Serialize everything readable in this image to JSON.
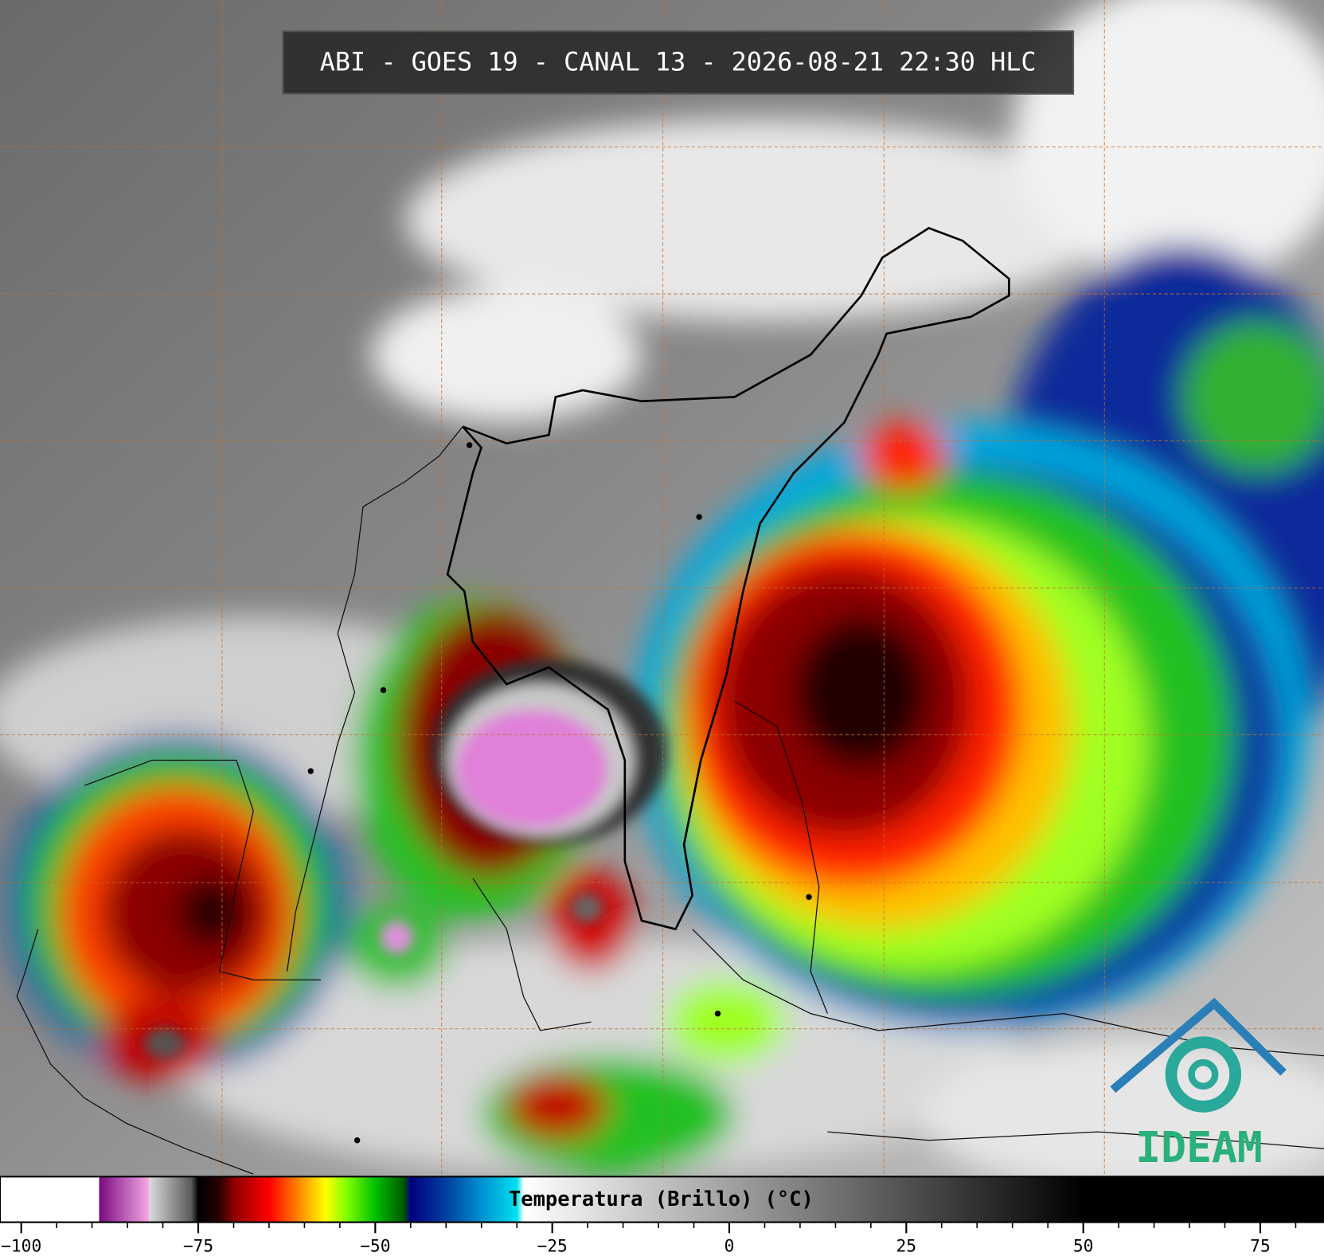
{
  "header": {
    "title": "ABI - GOES 19 - CANAL 13 - 2026-08-21 22:30 HLC"
  },
  "logo": {
    "text": "IDEAM"
  },
  "colorbar": {
    "label": "Temperatura (Brillo) (°C)",
    "lim": [
      -103,
      84
    ],
    "ticks": [
      {
        "value": -100,
        "label": "−100"
      },
      {
        "value": -75,
        "label": "−75"
      },
      {
        "value": -50,
        "label": "−50"
      },
      {
        "value": -25,
        "label": "−25"
      },
      0,
      25,
      50,
      75
    ],
    "minor_ticks": [
      -95,
      -90,
      -85,
      -80,
      -70,
      -65,
      -60,
      -55,
      -45,
      -40,
      -35,
      -30,
      -20,
      -15,
      -10,
      -5,
      5,
      10,
      15,
      20,
      30,
      35,
      40,
      45,
      55,
      60,
      65,
      70,
      80
    ],
    "stops": [
      {
        "value": -103,
        "color": "#ffffff"
      },
      {
        "value": -89,
        "color": "#ffffff"
      },
      {
        "value": -89,
        "color": "#7a0a80"
      },
      {
        "value": -82,
        "color": "#f4a8e4"
      },
      {
        "value": -82,
        "color": "#dcdcdc"
      },
      {
        "value": -76,
        "color": "#5a5a5a"
      },
      {
        "value": -75,
        "color": "#000000"
      },
      {
        "value": -72,
        "color": "#2a0000"
      },
      {
        "value": -70,
        "color": "#8b0000"
      },
      {
        "value": -65,
        "color": "#ff0000"
      },
      {
        "value": -62,
        "color": "#ff6000"
      },
      {
        "value": -59,
        "color": "#ffc000"
      },
      {
        "value": -57,
        "color": "#ffff00"
      },
      {
        "value": -54,
        "color": "#80ff00"
      },
      {
        "value": -50,
        "color": "#00c000"
      },
      {
        "value": -46,
        "color": "#005a00"
      },
      {
        "value": -45,
        "color": "#000080"
      },
      {
        "value": -40,
        "color": "#0040a0"
      },
      {
        "value": -35,
        "color": "#0090d0"
      },
      {
        "value": -30,
        "color": "#00e0f0"
      },
      {
        "value": -29,
        "color": "#ffffff"
      },
      {
        "value": 50,
        "color": "#000000"
      },
      {
        "value": 84,
        "color": "#000000"
      }
    ]
  }
}
